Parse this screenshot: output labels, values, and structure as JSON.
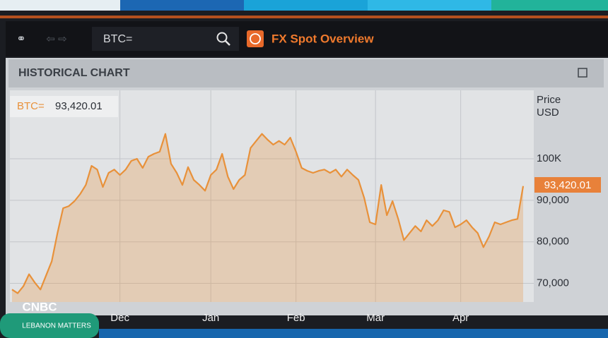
{
  "toolbar": {
    "search": "BTC=",
    "app_title": "FX Spot Overview"
  },
  "panel": {
    "title": "HISTORICAL CHART",
    "instrument": "BTC=",
    "quote": "93,420.01",
    "axis_title": "Price",
    "axis_unit": "USD"
  },
  "overlay": {
    "logo": "CNBC",
    "show": "LEBANON MATTERS"
  },
  "chart_data": {
    "type": "area",
    "color": "#e8913a",
    "grid": true,
    "categories": [
      null,
      null,
      null,
      null,
      null,
      null,
      null,
      null,
      null,
      null,
      null,
      null,
      null,
      null,
      null,
      null,
      null,
      null,
      null,
      "Dec",
      null,
      null,
      null,
      null,
      null,
      null,
      null,
      null,
      null,
      null,
      null,
      null,
      null,
      null,
      null,
      "Jan",
      null,
      null,
      null,
      null,
      null,
      null,
      null,
      null,
      null,
      null,
      null,
      null,
      null,
      null,
      "Feb",
      null,
      null,
      null,
      null,
      null,
      null,
      null,
      null,
      null,
      null,
      null,
      null,
      null,
      "Mar",
      null,
      null,
      null,
      null,
      null,
      null,
      null,
      null,
      null,
      null,
      null,
      null,
      null,
      null,
      "Apr",
      null,
      null,
      null,
      null,
      null,
      null,
      null,
      null,
      null,
      null,
      null
    ],
    "values": [
      68500,
      67600,
      69300,
      72200,
      70200,
      68500,
      71900,
      75300,
      82100,
      88100,
      88600,
      89800,
      91500,
      93700,
      98300,
      97400,
      93200,
      96600,
      97400,
      96100,
      97400,
      99500,
      100000,
      97800,
      100500,
      101200,
      101700,
      106000,
      98800,
      96600,
      93700,
      98000,
      94900,
      93700,
      92300,
      96100,
      97400,
      101200,
      95700,
      92700,
      94900,
      96100,
      102600,
      104300,
      106000,
      104600,
      103400,
      104300,
      103400,
      105100,
      101700,
      97800,
      97100,
      96600,
      97100,
      97400,
      96600,
      97400,
      95700,
      97400,
      96100,
      94900,
      90600,
      84700,
      84200,
      93700,
      86400,
      89800,
      85500,
      80400,
      82100,
      83800,
      82500,
      85200,
      83800,
      85200,
      87600,
      87200,
      83500,
      84200,
      85200,
      83500,
      82100,
      78700,
      81300,
      84700,
      84200,
      84700,
      85200,
      85500,
      93420.01
    ],
    "ylim": [
      65500,
      115300
    ],
    "yticks": [
      {
        "value": 100000,
        "label": "100K"
      },
      {
        "value": 90000,
        "label": "90,000"
      },
      {
        "value": 80000,
        "label": "80,000"
      },
      {
        "value": 70000,
        "label": "70,000"
      }
    ]
  }
}
